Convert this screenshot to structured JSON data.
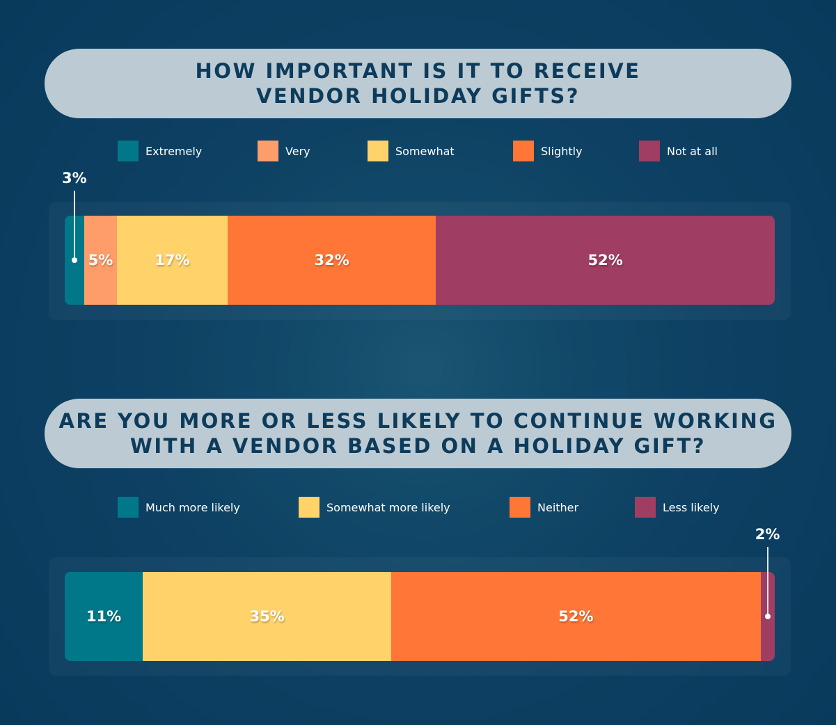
{
  "chart_data": [
    {
      "type": "bar",
      "orientation": "horizontal-stacked",
      "title": "HOW IMPORTANT IS IT TO RECEIVE\nVENDOR HOLIDAY GIFTS?",
      "legend_position": "top",
      "series": [
        {
          "name": "Extremely",
          "value": 3,
          "label": "3%",
          "color": "#00788a"
        },
        {
          "name": "Very",
          "value": 5,
          "label": "5%",
          "color": "#ff9d6a"
        },
        {
          "name": "Somewhat",
          "value": 17,
          "label": "17%",
          "color": "#ffd26a"
        },
        {
          "name": "Slightly",
          "value": 32,
          "label": "32%",
          "color": "#ff7637"
        },
        {
          "name": "Not at all",
          "value": 52,
          "label": "52%",
          "color": "#a03d62"
        }
      ]
    },
    {
      "type": "bar",
      "orientation": "horizontal-stacked",
      "title": "ARE YOU MORE OR LESS LIKELY TO CONTINUE WORKING\nWITH A VENDOR BASED ON A HOLIDAY GIFT?",
      "legend_position": "top",
      "series": [
        {
          "name": "Much more likely",
          "value": 11,
          "label": "11%",
          "color": "#00788a"
        },
        {
          "name": "Somewhat more likely",
          "value": 35,
          "label": "35%",
          "color": "#ffd26a"
        },
        {
          "name": "Neither",
          "value": 52,
          "label": "52%",
          "color": "#ff7637"
        },
        {
          "name": "Less likely",
          "value": 2,
          "label": "2%",
          "color": "#a03d62"
        }
      ]
    }
  ]
}
